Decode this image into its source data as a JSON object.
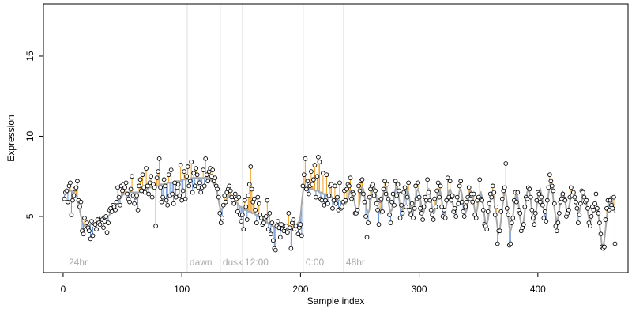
{
  "chart_data": {
    "type": "scatter-fit",
    "x_label": "Sample index",
    "y_label": "Expression",
    "xlim": [
      -16.6,
      476
    ],
    "ylim": [
      1.5,
      18.25
    ],
    "xticks": [
      0,
      100,
      200,
      300,
      400
    ],
    "yticks": [
      5,
      10,
      15
    ],
    "colors": {
      "point": "#000000",
      "above": "#f0a020",
      "below": "#6a96d8",
      "fit": "#a8a8a8",
      "vline": "#dddddd"
    },
    "annotations": [
      {
        "x": 2.7,
        "label": "24hr",
        "line": false
      },
      {
        "x": 104.5,
        "label": "dawn",
        "line": true
      },
      {
        "x": 132.4,
        "label": "dusk",
        "line": true
      },
      {
        "x": 151.1,
        "label": "12:00",
        "line": true
      },
      {
        "x": 202.3,
        "label": "0:00",
        "line": true
      },
      {
        "x": 236.3,
        "label": "48hr",
        "line": true
      }
    ],
    "x": [
      1,
      2,
      3,
      4,
      5,
      6,
      7,
      8,
      9,
      10,
      11,
      12,
      13,
      14,
      15,
      16,
      17,
      18,
      19,
      20,
      21,
      22,
      23,
      24,
      25,
      26,
      27,
      28,
      29,
      30,
      31,
      32,
      33,
      34,
      35,
      36,
      37,
      38,
      39,
      40,
      41,
      42,
      43,
      44,
      45,
      46,
      47,
      48,
      49,
      50,
      51,
      52,
      53,
      54,
      55,
      56,
      57,
      58,
      59,
      60,
      61,
      62,
      63,
      64,
      65,
      66,
      67,
      68,
      69,
      70,
      71,
      72,
      73,
      74,
      75,
      76,
      77,
      78,
      79,
      80,
      81,
      82,
      83,
      84,
      85,
      86,
      87,
      88,
      89,
      90,
      91,
      92,
      93,
      94,
      95,
      96,
      97,
      98,
      99,
      100,
      101,
      102,
      103,
      104,
      105,
      106,
      107,
      108,
      109,
      110,
      111,
      112,
      113,
      114,
      115,
      116,
      117,
      118,
      119,
      120,
      121,
      122,
      123,
      124,
      125,
      126,
      127,
      128,
      129,
      130,
      131,
      132,
      133,
      134,
      135,
      136,
      137,
      138,
      139,
      140,
      141,
      142,
      143,
      144,
      145,
      146,
      147,
      148,
      149,
      150,
      151,
      152,
      153,
      154,
      155,
      156,
      157,
      158,
      159,
      160,
      161,
      162,
      163,
      164,
      165,
      166,
      167,
      168,
      169,
      170,
      171,
      172,
      173,
      174,
      175,
      176,
      177,
      178,
      179,
      180,
      181,
      182,
      183,
      184,
      185,
      186,
      187,
      188,
      189,
      190,
      191,
      192,
      193,
      194,
      195,
      196,
      197,
      198,
      199,
      200,
      201,
      202,
      203,
      204,
      205,
      206,
      207,
      208,
      209,
      210,
      211,
      212,
      213,
      214,
      215,
      216,
      217,
      218,
      219,
      220,
      221,
      222,
      223,
      224,
      225,
      226,
      227,
      228,
      229,
      230,
      231,
      232,
      233,
      234,
      235,
      236,
      237,
      238,
      239,
      240,
      241,
      242,
      243,
      244,
      245,
      246,
      247,
      248,
      249,
      250,
      251,
      252,
      253,
      254,
      255,
      256,
      257,
      258,
      259,
      260,
      261,
      262,
      263,
      264,
      265,
      266,
      267,
      268,
      269,
      270,
      271,
      272,
      273,
      274,
      275,
      276,
      277,
      278,
      279,
      280,
      281,
      282,
      283,
      284,
      285,
      286,
      287,
      288,
      289,
      290,
      291,
      292,
      293,
      294,
      295,
      296,
      297,
      298,
      299,
      300,
      301,
      302,
      303,
      304,
      305,
      306,
      307,
      308,
      309,
      310,
      311,
      312,
      313,
      314,
      315,
      316,
      317,
      318,
      319,
      320,
      321,
      322,
      323,
      324,
      325,
      326,
      327,
      328,
      329,
      330,
      331,
      332,
      333,
      334,
      335,
      336,
      337,
      338,
      339,
      340,
      341,
      342,
      343,
      344,
      345,
      346,
      347,
      348,
      349,
      350,
      351,
      352,
      353,
      354,
      355,
      356,
      357,
      358,
      359,
      360,
      361,
      362,
      363,
      364,
      365,
      366,
      367,
      368,
      369,
      370,
      371,
      372,
      373,
      374,
      375,
      376,
      377,
      378,
      379,
      380,
      381,
      382,
      383,
      384,
      385,
      386,
      387,
      388,
      389,
      390,
      391,
      392,
      393,
      394,
      395,
      396,
      397,
      398,
      399,
      400,
      401,
      402,
      403,
      404,
      405,
      406,
      407,
      408,
      409,
      410,
      411,
      412,
      413,
      414,
      415,
      416,
      417,
      418,
      419,
      420,
      421,
      422,
      423,
      424,
      425,
      426,
      427,
      428,
      429,
      430,
      431,
      432,
      433,
      434,
      435,
      436,
      437,
      438,
      439,
      440,
      441,
      442,
      443,
      444,
      445,
      446,
      447,
      448,
      449,
      450,
      451,
      452,
      453,
      454,
      455,
      456,
      457,
      458,
      459,
      460,
      461,
      462,
      463,
      464,
      465
    ],
    "values": [
      6.1,
      6.5,
      6.6,
      5.9,
      6.9,
      7.1,
      5.1,
      6.0,
      6.3,
      6.7,
      6.8,
      7.2,
      6.0,
      5.6,
      5.9,
      4.1,
      3.9,
      4.9,
      4.2,
      4.6,
      4.3,
      4.1,
      3.6,
      4.7,
      3.8,
      4.4,
      4.5,
      4.2,
      4.8,
      4.6,
      4.5,
      4.9,
      4.8,
      4.3,
      4.7,
      5.0,
      4.0,
      4.6,
      5.4,
      5.5,
      5.3,
      5.7,
      5.6,
      5.4,
      5.9,
      6.8,
      6.2,
      5.7,
      6.9,
      6.6,
      7.0,
      6.8,
      7.1,
      6.4,
      6.1,
      5.9,
      6.7,
      7.5,
      6.3,
      5.8,
      6.2,
      6.3,
      5.4,
      6.9,
      7.3,
      6.6,
      7.6,
      6.8,
      6.5,
      8.0,
      6.9,
      6.4,
      7.1,
      7.5,
      6.2,
      7.0,
      6.8,
      4.4,
      7.4,
      7.8,
      8.6,
      6.8,
      5.9,
      6.2,
      7.3,
      6.9,
      6.0,
      5.7,
      7.6,
      6.3,
      7.9,
      6.4,
      5.8,
      7.1,
      6.2,
      6.8,
      7.0,
      6.3,
      8.2,
      6.0,
      6.6,
      7.8,
      6.1,
      7.5,
      8.1,
      6.9,
      7.2,
      8.4,
      6.5,
      7.7,
      6.9,
      8.0,
      7.6,
      6.8,
      7.1,
      6.5,
      6.8,
      7.9,
      6.9,
      8.6,
      7.6,
      7.2,
      7.8,
      8.0,
      7.5,
      7.9,
      7.2,
      7.4,
      6.9,
      6.7,
      6.2,
      5.2,
      4.6,
      4.9,
      5.7,
      6.3,
      5.9,
      6.5,
      6.7,
      6.9,
      6.6,
      6.2,
      6.0,
      5.8,
      6.4,
      6.1,
      5.3,
      6.2,
      5.1,
      4.7,
      5.1,
      4.2,
      6.0,
      5.6,
      4.8,
      6.3,
      7.0,
      8.1,
      6.7,
      5.9,
      6.1,
      5.4,
      4.6,
      6.2,
      5.8,
      5.1,
      4.9,
      4.5,
      4.6,
      4.9,
      5.0,
      6.0,
      4.2,
      5.2,
      3.9,
      4.6,
      3.5,
      3.0,
      2.9,
      4.4,
      4.7,
      4.3,
      3.7,
      4.5,
      4.2,
      4.1,
      4.3,
      4.4,
      4.0,
      5.2,
      4.3,
      3.0,
      4.6,
      4.8,
      4.2,
      4.4,
      4.2,
      3.9,
      4.3,
      4.5,
      3.8,
      6.9,
      7.6,
      8.6,
      6.7,
      7.2,
      6.4,
      6.9,
      7.8,
      7.0,
      7.3,
      8.2,
      6.2,
      7.5,
      8.7,
      8.4,
      6.1,
      6.0,
      7.7,
      5.7,
      6.0,
      7.6,
      5.8,
      6.3,
      6.9,
      7.0,
      5.5,
      6.0,
      6.9,
      5.8,
      6.2,
      5.4,
      7.1,
      5.5,
      5.6,
      5.9,
      6.6,
      6.0,
      6.7,
      7.0,
      6.9,
      7.4,
      6.1,
      6.5,
      6.4,
      5.2,
      5.2,
      5.4,
      6.9,
      6.6,
      7.2,
      7.3,
      6.4,
      5.9,
      5.0,
      3.7,
      4.6,
      6.2,
      6.7,
      6.9,
      7.0,
      6.3,
      6.6,
      5.8,
      5.4,
      4.5,
      6.0,
      6.1,
      5.3,
      6.7,
      7.2,
      6.4,
      7.0,
      6.1,
      5.1,
      4.6,
      5.9,
      6.4,
      5.7,
      7.2,
      6.3,
      7.0,
      6.6,
      4.9,
      5.7,
      5.2,
      6.5,
      6.8,
      5.6,
      6.2,
      7.1,
      5.4,
      5.1,
      5.8,
      4.9,
      5.5,
      6.9,
      6.1,
      7.1,
      6.2,
      5.5,
      5.2,
      4.8,
      5.6,
      6.2,
      6.0,
      7.3,
      6.5,
      6.0,
      5.4,
      5.1,
      4.8,
      6.1,
      5.6,
      6.6,
      7.1,
      6.2,
      6.9,
      5.6,
      5.0,
      5.4,
      4.9,
      6.0,
      7.4,
      6.2,
      7.2,
      6.0,
      6.3,
      5.3,
      5.5,
      5.0,
      6.2,
      5.8,
      6.9,
      7.2,
      5.9,
      5.3,
      5.0,
      5.6,
      5.9,
      6.2,
      6.8,
      6.1,
      6.4,
      5.9,
      6.4,
      5.1,
      4.9,
      6.0,
      6.2,
      7.3,
      6.1,
      6.0,
      5.4,
      4.5,
      4.4,
      4.2,
      5.3,
      5.8,
      6.4,
      6.2,
      6.9,
      6.5,
      5.1,
      5.6,
      3.3,
      4.1,
      4.1,
      5.3,
      6.1,
      6.6,
      6.8,
      8.3,
      5.5,
      5.1,
      3.2,
      3.3,
      4.6,
      4.9,
      6.0,
      6.5,
      5.9,
      6.5,
      5.4,
      5.2,
      4.1,
      4.3,
      4.5,
      5.6,
      6.2,
      6.1,
      6.8,
      6.7,
      6.2,
      5.4,
      4.9,
      4.5,
      5.2,
      6.0,
      6.5,
      6.4,
      5.9,
      6.2,
      5.7,
      4.9,
      5.3,
      4.7,
      6.0,
      6.8,
      7.6,
      7.2,
      6.9,
      6.6,
      5.8,
      4.4,
      4.1,
      4.6,
      5.2,
      5.9,
      6.1,
      6.4,
      6.1,
      6.0,
      5.0,
      5.2,
      5.4,
      6.2,
      6.8,
      6.3,
      6.5,
      6.2,
      5.9,
      5.5,
      4.6,
      5.1,
      5.8,
      6.6,
      6.5,
      6.2,
      5.9,
      6.0,
      5.5,
      4.6,
      4.4,
      5.0,
      5.6,
      5.4,
      5.8,
      6.4,
      5.5,
      5.2,
      4.6,
      3.9,
      3.1,
      3.0,
      3.1,
      4.8,
      5.5,
      6.0,
      5.4,
      6.0,
      5.7,
      5.5,
      6.2,
      3.3
    ],
    "fit": [
      6.3,
      6.4,
      6.5,
      6.5,
      6.6,
      6.6,
      6.6,
      6.5,
      6.5,
      6.4,
      6.3,
      6.1,
      5.8,
      5.4,
      5.0,
      4.7,
      4.5,
      4.4,
      4.4,
      4.4,
      4.4,
      4.4,
      4.5,
      4.5,
      4.5,
      4.5,
      4.6,
      4.6,
      4.6,
      4.7,
      4.7,
      4.7,
      4.8,
      4.8,
      4.8,
      4.9,
      4.9,
      5.0,
      5.1,
      5.2,
      5.3,
      5.4,
      5.5,
      5.6,
      5.8,
      5.9,
      6.0,
      6.1,
      6.2,
      6.3,
      6.4,
      6.4,
      6.5,
      6.5,
      6.5,
      6.5,
      6.5,
      6.5,
      6.5,
      6.5,
      6.5,
      6.5,
      6.5,
      6.5,
      6.6,
      6.6,
      6.6,
      6.6,
      6.7,
      6.7,
      6.7,
      6.8,
      6.8,
      6.8,
      6.8,
      6.9,
      6.9,
      6.9,
      6.9,
      6.9,
      6.9,
      7.0,
      7.0,
      7.0,
      7.0,
      7.0,
      7.0,
      7.1,
      7.1,
      7.1,
      7.1,
      7.1,
      7.1,
      7.2,
      7.2,
      7.2,
      7.2,
      7.2,
      7.2,
      7.3,
      7.3,
      7.3,
      7.3,
      7.3,
      7.3,
      7.3,
      7.3,
      7.4,
      7.4,
      7.4,
      7.4,
      7.4,
      7.4,
      7.4,
      7.4,
      7.4,
      7.4,
      7.4,
      7.4,
      7.4,
      7.4,
      7.4,
      7.3,
      7.3,
      7.2,
      7.1,
      7.0,
      6.9,
      6.7,
      6.4,
      6.0,
      5.6,
      5.4,
      5.5,
      5.6,
      5.8,
      6.0,
      6.1,
      6.2,
      6.3,
      6.3,
      6.3,
      6.2,
      6.1,
      6.0,
      5.9,
      5.8,
      5.7,
      5.6,
      5.6,
      5.5,
      5.5,
      5.4,
      5.4,
      5.4,
      5.3,
      5.3,
      5.3,
      5.2,
      5.2,
      5.2,
      5.1,
      5.1,
      5.0,
      5.0,
      4.9,
      4.9,
      4.8,
      4.8,
      4.7,
      4.7,
      4.6,
      4.6,
      4.5,
      4.5,
      4.4,
      4.4,
      4.3,
      4.3,
      4.3,
      4.2,
      4.2,
      4.2,
      4.2,
      4.2,
      4.2,
      4.2,
      4.2,
      4.2,
      4.2,
      4.2,
      4.2,
      4.2,
      4.3,
      4.3,
      4.4,
      4.5,
      4.6,
      4.7,
      5.0,
      5.8,
      6.5,
      6.8,
      6.8,
      6.8,
      6.8,
      6.8,
      6.7,
      6.7,
      6.7,
      6.7,
      6.6,
      6.6,
      6.6,
      6.6,
      6.5,
      6.5,
      6.5,
      6.4,
      6.4,
      6.4,
      6.3,
      6.3,
      6.3,
      6.2,
      6.2,
      6.2,
      6.1,
      6.1,
      6.1,
      6.0,
      6.0,
      6.0,
      5.9,
      5.9,
      5.9,
      5.8,
      5.8,
      5.9,
      6.1,
      6.4,
      6.6,
      6.6,
      6.4,
      6.1,
      5.7,
      5.4,
      5.3,
      5.5,
      6.0,
      6.5,
      6.8,
      6.7,
      6.3,
      5.8,
      5.4,
      5.2,
      5.4,
      5.9,
      6.4,
      6.8,
      6.9,
      6.7,
      6.2,
      5.7,
      5.3,
      5.2,
      5.5,
      6.0,
      6.5,
      6.8,
      6.8,
      6.5,
      6.0,
      5.5,
      5.3,
      5.4,
      5.8,
      6.3,
      6.7,
      6.8,
      6.6,
      6.1,
      5.6,
      5.3,
      5.4,
      5.8,
      6.3,
      6.6,
      6.7,
      6.5,
      6.0,
      5.5,
      5.2,
      5.3,
      5.7,
      6.2,
      6.6,
      6.7,
      6.5,
      6.1,
      5.6,
      5.3,
      5.3,
      5.7,
      6.2,
      6.6,
      6.7,
      6.5,
      6.0,
      5.5,
      5.2,
      5.3,
      5.7,
      6.2,
      6.6,
      6.7,
      6.5,
      6.0,
      5.5,
      5.2,
      5.3,
      5.7,
      6.2,
      6.6,
      6.7,
      6.5,
      6.0,
      5.5,
      5.2,
      5.3,
      5.7,
      6.2,
      6.6,
      6.7,
      6.4,
      5.9,
      5.4,
      5.2,
      5.4,
      5.8,
      6.3,
      6.6,
      6.6,
      6.3,
      5.8,
      5.3,
      5.2,
      5.5,
      6.0,
      6.4,
      6.5,
      6.2,
      5.7,
      5.0,
      4.6,
      4.5,
      4.8,
      5.4,
      6.0,
      6.4,
      6.5,
      6.1,
      5.5,
      4.9,
      4.3,
      4.0,
      4.2,
      4.8,
      5.5,
      6.1,
      6.5,
      6.4,
      5.8,
      5.0,
      4.3,
      4.1,
      4.4,
      5.0,
      5.7,
      6.2,
      6.4,
      6.2,
      5.6,
      4.9,
      4.5,
      4.4,
      4.7,
      5.3,
      6.0,
      6.5,
      6.7,
      6.5,
      6.0,
      5.3,
      4.8,
      4.7,
      5.0,
      5.6,
      6.2,
      6.6,
      6.7,
      6.4,
      5.9,
      5.4,
      5.1,
      5.3,
      5.8,
      6.4,
      6.9,
      7.0,
      6.7,
      6.1,
      5.5,
      5.0,
      4.7,
      4.9,
      5.4,
      6.0,
      6.4,
      6.5,
      6.3,
      5.9,
      5.5,
      5.3,
      5.5,
      5.9,
      6.3,
      6.6,
      6.6,
      6.4,
      6.0,
      5.6,
      5.3,
      5.3,
      5.6,
      6.0,
      6.3,
      6.4,
      6.2,
      5.8,
      5.3,
      4.9,
      4.7,
      4.8,
      5.2,
      5.6,
      5.9,
      5.9,
      5.6,
      5.1,
      4.5,
      3.8,
      3.2,
      3.1,
      3.5,
      4.2,
      4.9,
      5.6,
      6.0,
      6.2,
      6.1,
      5.8,
      5.5,
      5.2
    ]
  }
}
